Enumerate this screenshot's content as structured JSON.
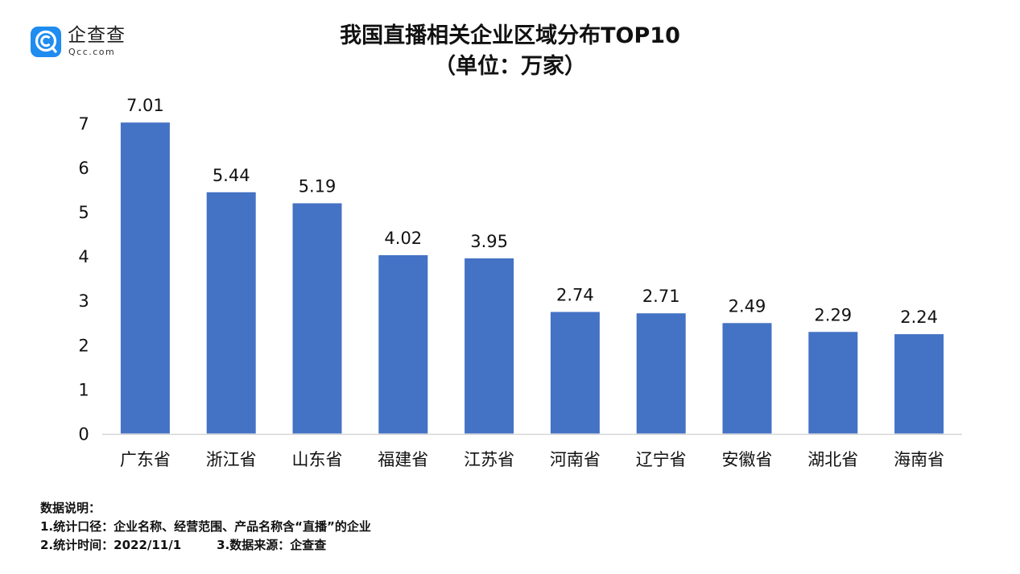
{
  "logo": {
    "name": "企查查",
    "domain": "Qcc.com",
    "brand_color": "#1f8cf0"
  },
  "title": {
    "line1": "我国直播相关企业区域分布TOP10",
    "line2": "（单位：万家）"
  },
  "chart_data": {
    "type": "bar",
    "categories": [
      "广东省",
      "浙江省",
      "山东省",
      "福建省",
      "江苏省",
      "河南省",
      "辽宁省",
      "安徽省",
      "湖北省",
      "海南省"
    ],
    "values": [
      7.01,
      5.44,
      5.19,
      4.02,
      3.95,
      2.74,
      2.71,
      2.49,
      2.29,
      2.24
    ],
    "value_labels": [
      "7.01",
      "5.44",
      "5.19",
      "4.02",
      "3.95",
      "2.74",
      "2.71",
      "2.49",
      "2.29",
      "2.24"
    ],
    "y_ticks": [
      "0",
      "1",
      "2",
      "3",
      "4",
      "5",
      "6",
      "7"
    ],
    "ylim": [
      0,
      7
    ],
    "bar_color": "#4472c4",
    "grid": false,
    "legend": "none"
  },
  "notes": {
    "heading": "数据说明：",
    "line1": "1.统计口径：企业名称、经营范围、产品名称含“直播”的企业",
    "line2a": "2.统计时间：2022/11/1",
    "line2b": "3.数据来源：企查查"
  }
}
